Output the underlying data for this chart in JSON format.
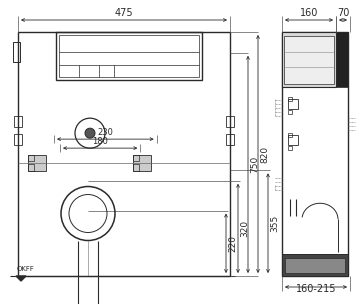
{
  "bg_color": "#ffffff",
  "lc": "#2a2a2a",
  "annotations": {
    "dim_475": "475",
    "dim_230": "230",
    "dim_180": "180",
    "dim_750": "750",
    "dim_820": "820",
    "dim_355": "355",
    "dim_320": "320",
    "dim_220": "220",
    "dim_160": "160",
    "dim_70": "70",
    "dim_160_215": "160-215",
    "okff": "OKFF"
  },
  "front": {
    "fL": 18,
    "fR": 230,
    "fT": 272,
    "fB": 28
  },
  "side": {
    "sL": 282,
    "sR": 348,
    "sT": 272,
    "sB": 28
  }
}
